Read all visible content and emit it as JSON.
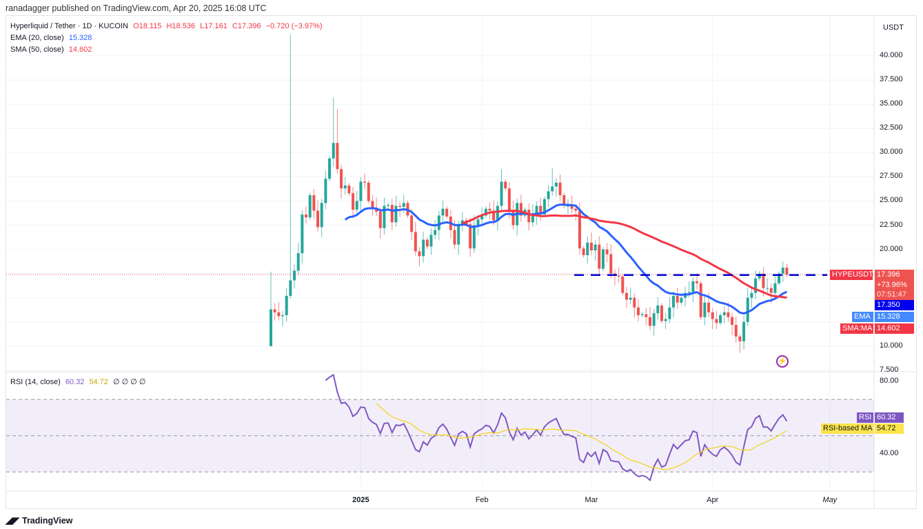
{
  "header": {
    "published": "ranadagger published on TradingView.com, Apr 20, 2025 16:08 UTC"
  },
  "legend": {
    "symbol": "Hyperliquid / Tether · 1D · KUCOIN",
    "open": "O18.115",
    "high": "H18.536",
    "low": "L17.161",
    "close": "C17.396",
    "change": "−0.720 (−3.97%)",
    "ema_label": "EMA (20, close)",
    "ema_value": "15.328",
    "sma_label": "SMA (50, close)",
    "sma_value": "14.602",
    "rsi_label": "RSI (14, close)",
    "rsi_value": "60.32",
    "rsi_ma_value": "54.72",
    "rsi_extra": "∅ ∅ ∅ ∅"
  },
  "price_axis": {
    "currency": "USDT",
    "labels": [
      "40.000",
      "37.500",
      "35.000",
      "32.500",
      "30.000",
      "27.500",
      "25.000",
      "22.500",
      "20.000",
      "10.000",
      "7.500"
    ],
    "rsi_labels": [
      "80.00",
      "40.00"
    ]
  },
  "time_axis": {
    "labels": [
      "2025",
      "Feb",
      "Mar",
      "Apr",
      "May"
    ]
  },
  "tags": {
    "symbol": "HYPEUSDT",
    "price": "17.396",
    "change_pct": "+73.96%",
    "countdown": "07:51:47",
    "line_value": "17.350",
    "ema_name": "EMA",
    "ema_value": "15.328",
    "sma_name": "SMA:MA",
    "sma_value": "14.602",
    "rsi_name": "RSI",
    "rsi_value": "60.32",
    "rsi_ma_name": "RSI-based MA",
    "rsi_ma_value": "54.72"
  },
  "footer": {
    "brand": "TradingView"
  },
  "colors": {
    "up": "#26a69a",
    "down": "#ef5350",
    "ema": "#2962ff",
    "sma": "#f23645",
    "rsi": "#7e57c2",
    "rsi_ma": "#f5d423",
    "level_line": "#0000cc"
  },
  "chart_data": {
    "type": "candlestick",
    "interval": "1D",
    "first_date": "2024-12-09",
    "last_date": "2025-04-20",
    "first_open": 10.0,
    "close": [
      13.8,
      13.5,
      13.1,
      13.2,
      15.2,
      16.8,
      17.8,
      19.6,
      23.6,
      23.3,
      25.6,
      24.0,
      22.3,
      24.8,
      27.3,
      29.4,
      31.0,
      28.3,
      26.3,
      26.6,
      25.8,
      24.1,
      25.0,
      27.0,
      26.9,
      25.0,
      24.3,
      23.9,
      22.2,
      24.5,
      24.6,
      22.8,
      24.5,
      24.4,
      24.8,
      23.5,
      21.8,
      19.8,
      19.3,
      21.0,
      20.3,
      21.5,
      22.0,
      23.5,
      24.2,
      23.4,
      22.0,
      20.5,
      22.5,
      23.0,
      22.6,
      20.1,
      22.5,
      23.1,
      23.5,
      24.2,
      24.0,
      23.0,
      24.5,
      27.0,
      26.3,
      24.0,
      22.5,
      24.8,
      23.5,
      24.1,
      22.8,
      23.6,
      24.5,
      23.6,
      25.2,
      26.0,
      26.5,
      26.9,
      25.6,
      24.5,
      24.5,
      24.2,
      24.0,
      20.1,
      19.4,
      20.7,
      19.9,
      20.5,
      18.0,
      20.0,
      19.5,
      17.5,
      17.3,
      17.2,
      15.5,
      14.8,
      15.0,
      14.0,
      13.2,
      13.3,
      13.0,
      12.1,
      13.4,
      14.2,
      12.6,
      12.8,
      14.0,
      15.2,
      14.5,
      15.0,
      15.5,
      15.6,
      16.7,
      16.5,
      13.0,
      14.5,
      13.5,
      12.8,
      12.4,
      13.2,
      13.5,
      13.0,
      12.2,
      11.0,
      10.5,
      12.5,
      15.0,
      15.5,
      17.0,
      17.5,
      16.0,
      16.0,
      15.5,
      16.5,
      17.5,
      18.115,
      17.396
    ],
    "notable_highs": {
      "0": 17.7,
      "5": 42.2,
      "16": 35.7,
      "17": 34.5,
      "59": 28.3,
      "72": 28.4,
      "132": 18.536
    },
    "notable_lows": {
      "0": 10.0,
      "120": 9.3,
      "132": 17.161
    },
    "horizontal_level": 17.35,
    "indicators": {
      "ema_period": 20,
      "sma_period": 50,
      "rsi_period": 14,
      "rsi_ma_period": 14
    },
    "ylim": [
      7.5,
      42.5
    ],
    "rsi_ylim": [
      20,
      85
    ],
    "rsi_bands": [
      70,
      50,
      30
    ],
    "price_ticks": [
      40,
      37.5,
      35,
      32.5,
      30,
      27.5,
      25,
      22.5,
      20,
      10,
      7.5
    ],
    "rsi_ticks": [
      80,
      40
    ],
    "time_ticks": [
      "2025-01-01",
      "2025-02-01",
      "2025-03-01",
      "2025-04-01",
      "2025-05-01"
    ],
    "grid": true
  }
}
